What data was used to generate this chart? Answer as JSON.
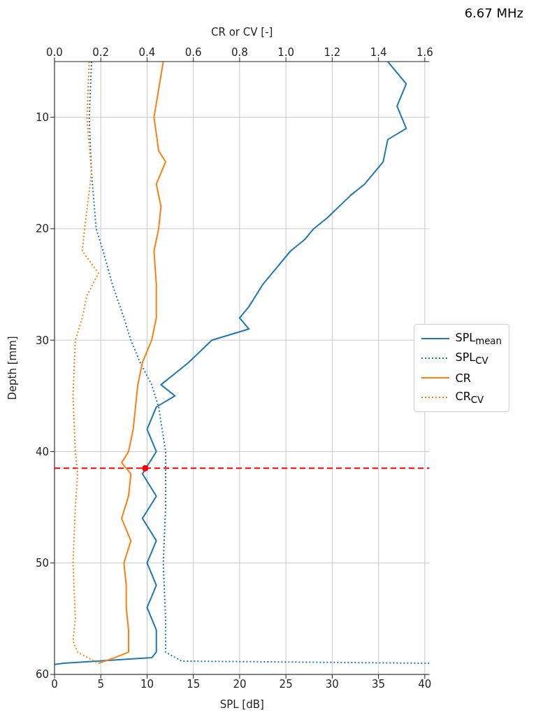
{
  "chart_data": {
    "type": "line",
    "title": "6.67 MHz",
    "xlabel": "SPL [dB]",
    "x2label": "CR or CV [-]",
    "ylabel": "Depth [mm]",
    "orientation": "horizontal",
    "xlim": [
      0,
      40.5
    ],
    "xticks": [
      0,
      5,
      10,
      15,
      20,
      25,
      30,
      35,
      40
    ],
    "x2lim": [
      0,
      1.62
    ],
    "x2ticks": [
      {
        "value": 0,
        "label": "0.0"
      },
      {
        "value": 0.2,
        "label": "0.2"
      },
      {
        "value": 0.4,
        "label": "0.4"
      },
      {
        "value": 0.6,
        "label": "0.6"
      },
      {
        "value": 0.8,
        "label": "0.8"
      },
      {
        "value": 1,
        "label": "1.0"
      },
      {
        "value": 1.2,
        "label": "1.2"
      },
      {
        "value": 1.4,
        "label": "1.4"
      },
      {
        "value": 1.6,
        "label": "1.6"
      }
    ],
    "ylim": [
      60,
      5
    ],
    "yticks": [
      10,
      20,
      30,
      40,
      50,
      60
    ],
    "grid": true,
    "legend": "right",
    "series": [
      {
        "name": "SPL$_{mean}$",
        "color": "#1f77b4",
        "line_style": "solid",
        "x": [
          5,
          7,
          9,
          11,
          12,
          14,
          16,
          17,
          19,
          20,
          21,
          22,
          24,
          25,
          27,
          28,
          29,
          30,
          32,
          33,
          34,
          35,
          36,
          38,
          40,
          42,
          44,
          46,
          48,
          50,
          52,
          54,
          56,
          58,
          58.5,
          59,
          59.1
        ],
        "values": [
          36,
          38,
          37,
          38,
          36,
          35.5,
          33.5,
          32,
          29.5,
          28,
          27,
          25.5,
          23.5,
          22.5,
          21,
          20,
          21,
          17,
          14.5,
          13,
          11.5,
          13,
          11,
          10,
          11,
          9.5,
          11,
          9.5,
          11,
          10,
          11,
          10,
          11,
          11,
          10.5,
          1,
          0
        ]
      },
      {
        "name": "SPL$_{CV}$",
        "color": "#1f77b4",
        "line_style": "dotted",
        "axis": "x2",
        "x": [
          5,
          10,
          15,
          20,
          22,
          25,
          28,
          30,
          32,
          34,
          36,
          40,
          45,
          50,
          55,
          58,
          58.8,
          59
        ],
        "values": [
          0.16,
          0.15,
          0.16,
          0.18,
          0.21,
          0.25,
          0.3,
          0.33,
          0.37,
          0.42,
          0.45,
          0.48,
          0.48,
          0.47,
          0.48,
          0.48,
          0.55,
          1.62
        ]
      },
      {
        "name": "CR",
        "color": "#ff7f0e",
        "line_style": "solid",
        "axis": "x2",
        "x": [
          5,
          10,
          13,
          14,
          16,
          18,
          20,
          22,
          25,
          28,
          30,
          32,
          34,
          36,
          38,
          40,
          41,
          42,
          44,
          46,
          48,
          50,
          52,
          54,
          56,
          58,
          58.5,
          59
        ],
        "values": [
          0.47,
          0.43,
          0.45,
          0.48,
          0.44,
          0.46,
          0.45,
          0.43,
          0.44,
          0.44,
          0.42,
          0.38,
          0.36,
          0.35,
          0.34,
          0.32,
          0.29,
          0.33,
          0.32,
          0.29,
          0.33,
          0.3,
          0.31,
          0.31,
          0.32,
          0.32,
          0.26,
          0.19
        ]
      },
      {
        "name": "CR$_{CV}$",
        "color": "#ff7f0e",
        "line_style": "dotted",
        "axis": "x2",
        "x": [
          5,
          10,
          15,
          20,
          22,
          24,
          26,
          28,
          30,
          35,
          40,
          42,
          45,
          50,
          55,
          57,
          58,
          59
        ],
        "values": [
          0.15,
          0.14,
          0.16,
          0.13,
          0.12,
          0.19,
          0.14,
          0.12,
          0.09,
          0.08,
          0.09,
          0.1,
          0.09,
          0.08,
          0.09,
          0.08,
          0.1,
          0.19
        ]
      },
      {
        "type": "scatter",
        "color": "#ff0000",
        "marker": "circle",
        "x": [
          41.5
        ],
        "values": [
          9.8
        ]
      }
    ],
    "ref_lines": [
      {
        "axis": "y",
        "value": 41.5,
        "color": "#ff0000",
        "line_style": "dashed"
      }
    ]
  }
}
